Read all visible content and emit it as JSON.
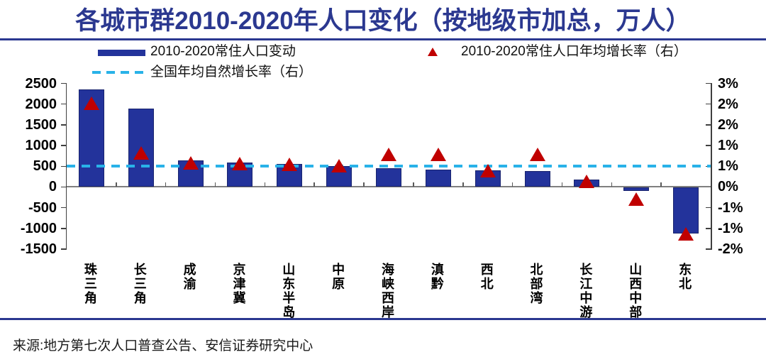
{
  "title": "各城市群2010-2020年人口变化（按地级市加总，万人）",
  "legend": {
    "bar_label": "2010-2020常住人口变动",
    "triangle_label": "2010-2020常住人口年均增长率（右）",
    "dash_label": "全国年均自然增长率（右）"
  },
  "source": "来源:地方第七次人口普查公告、安信证券研究中心",
  "colors": {
    "navy": "#23339B",
    "title_navy": "#2B3890",
    "red": "#C00000",
    "cyan_dash": "#29B2E8",
    "zero_line": "#7F7F7F",
    "axis": "#3F3F3F"
  },
  "chart_data": {
    "type": "bar",
    "title": "各城市群2010-2020年人口变化（按地级市加总，万人）",
    "categories": [
      "珠三角",
      "长三角",
      "成渝",
      "京津冀",
      "山东半岛",
      "中原",
      "海峡西岸",
      "滇黔",
      "西北",
      "北部湾",
      "长江中游",
      "山西中部",
      "东北"
    ],
    "series": [
      {
        "name": "2010-2020常住人口变动",
        "type": "bar",
        "axis": "left",
        "unit": "万人",
        "values": [
          2350,
          1890,
          630,
          590,
          555,
          490,
          440,
          420,
          390,
          385,
          175,
          -95,
          -1135
        ]
      },
      {
        "name": "2010-2020常住人口年均增长率（右）",
        "type": "scatter",
        "marker": "triangle-up",
        "axis": "right",
        "unit": "%",
        "values": [
          2.4,
          0.9,
          0.6,
          0.57,
          0.55,
          0.52,
          0.85,
          0.85,
          0.37,
          0.85,
          0.05,
          -0.5,
          -1.55
        ]
      },
      {
        "name": "全国年均自然增长率（右）",
        "type": "hline",
        "axis": "right",
        "unit": "%",
        "value": 0.5
      }
    ],
    "left_axis": {
      "min": -1500,
      "max": 2500,
      "tick_labels": [
        "2500",
        "2000",
        "1500",
        "1000",
        "500",
        "0",
        "-500",
        "-1000",
        "-1500"
      ]
    },
    "right_axis": {
      "min": -2,
      "max": 3,
      "tick_labels": [
        "3%",
        "2%",
        "2%",
        "1%",
        "1%",
        "0%",
        "-1%",
        "-1%",
        "-2%"
      ]
    },
    "legend_position": "top",
    "grid": false
  }
}
